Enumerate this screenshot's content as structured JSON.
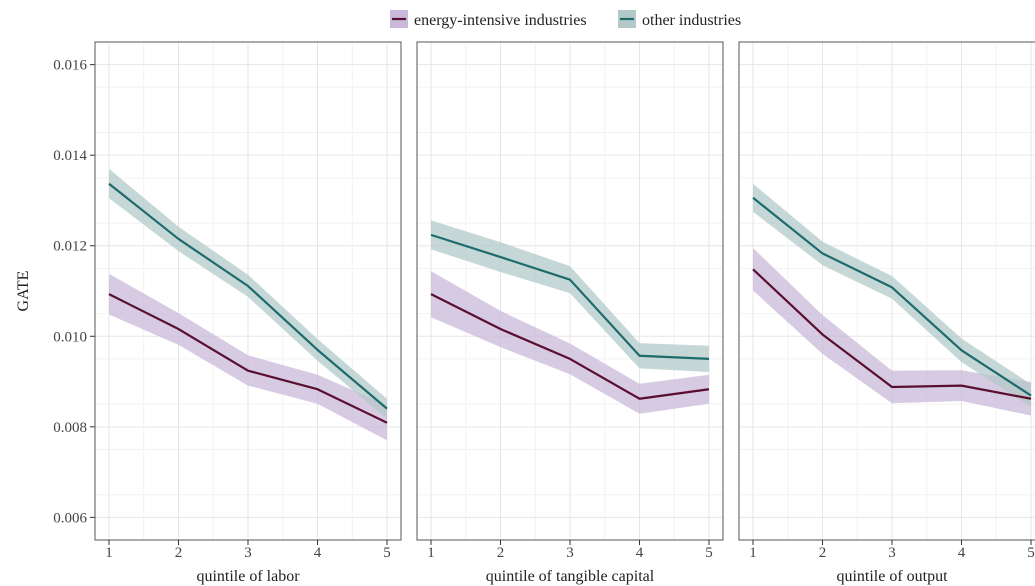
{
  "chart_data": {
    "type": "line",
    "ylabel": "GATE",
    "ylim": [
      0.0055,
      0.0165
    ],
    "yticks": [
      "0.006",
      "0.008",
      "0.010",
      "0.012",
      "0.014",
      "0.016"
    ],
    "ytick_values": [
      0.006,
      0.008,
      0.01,
      0.012,
      0.014,
      0.016
    ],
    "legend": {
      "position": "top",
      "entries": [
        "energy-intensive industries",
        "other industries"
      ]
    },
    "grid": true,
    "colors": {
      "energy_line": "#5a0f2e",
      "energy_band": "#c9b8da",
      "other_line": "#1d6b6b",
      "other_band": "#b3c9c9"
    },
    "panels": [
      {
        "xlabel": "quintile of labor",
        "x": [
          1,
          2,
          3,
          4,
          5
        ],
        "xtick_labels": [
          "1",
          "2",
          "3",
          "4",
          "5"
        ],
        "series": [
          {
            "name": "energy-intensive industries",
            "values": [
              0.01093,
              0.01016,
              0.00924,
              0.00883,
              0.00809
            ],
            "lower": [
              0.01048,
              0.00981,
              0.00891,
              0.00851,
              0.0077
            ],
            "upper": [
              0.01138,
              0.01051,
              0.00958,
              0.00915,
              0.00848
            ]
          },
          {
            "name": "other industries",
            "values": [
              0.01337,
              0.01215,
              0.01111,
              0.0097,
              0.0084
            ],
            "lower": [
              0.01305,
              0.01188,
              0.01087,
              0.00946,
              0.00818
            ],
            "upper": [
              0.0137,
              0.01242,
              0.01136,
              0.00994,
              0.00862
            ]
          }
        ]
      },
      {
        "xlabel": "quintile of tangible capital",
        "x": [
          1,
          2,
          3,
          4,
          5
        ],
        "xtick_labels": [
          "1",
          "2",
          "3",
          "4",
          "5"
        ],
        "series": [
          {
            "name": "energy-intensive industries",
            "values": [
              0.01093,
              0.01016,
              0.0095,
              0.00862,
              0.00883
            ],
            "lower": [
              0.01042,
              0.00976,
              0.00916,
              0.00829,
              0.00851
            ],
            "upper": [
              0.01144,
              0.01056,
              0.00984,
              0.00895,
              0.00915
            ]
          },
          {
            "name": "other industries",
            "values": [
              0.01224,
              0.01175,
              0.01125,
              0.00957,
              0.0095
            ],
            "lower": [
              0.01192,
              0.01142,
              0.01095,
              0.00929,
              0.00921
            ],
            "upper": [
              0.01256,
              0.01208,
              0.01155,
              0.00985,
              0.00979
            ]
          }
        ]
      },
      {
        "xlabel": "quintile of output",
        "x": [
          1,
          2,
          3,
          4,
          5
        ],
        "xtick_labels": [
          "1",
          "2",
          "3",
          "4",
          "5"
        ],
        "series": [
          {
            "name": "energy-intensive industries",
            "values": [
              0.01148,
              0.01004,
              0.00888,
              0.00891,
              0.00862
            ],
            "lower": [
              0.01101,
              0.00961,
              0.00852,
              0.00857,
              0.00825
            ],
            "upper": [
              0.01195,
              0.01047,
              0.00924,
              0.00925,
              0.00899
            ]
          },
          {
            "name": "other industries",
            "values": [
              0.01306,
              0.01183,
              0.01108,
              0.00969,
              0.00869
            ],
            "lower": [
              0.01275,
              0.01157,
              0.01083,
              0.00943,
              0.00844
            ],
            "upper": [
              0.01337,
              0.01209,
              0.01133,
              0.00995,
              0.00894
            ]
          }
        ]
      }
    ]
  }
}
